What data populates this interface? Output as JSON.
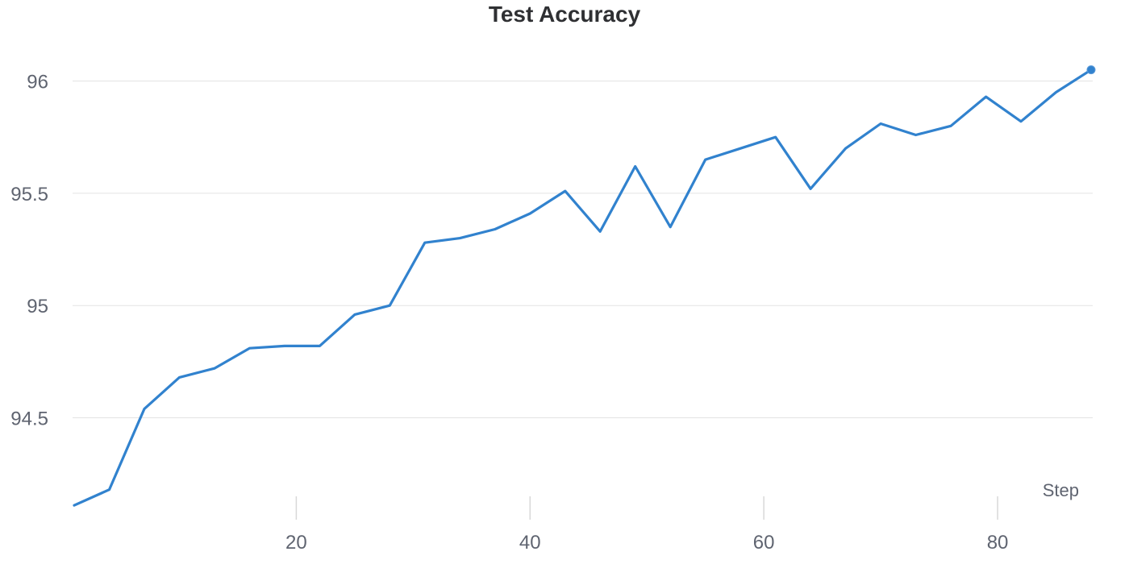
{
  "chart_data": {
    "type": "line",
    "title": "Test Accuracy",
    "xlabel": "Step",
    "ylabel": "",
    "xlim": [
      1,
      88
    ],
    "ylim": [
      94.1,
      96.16
    ],
    "x_ticks": [
      20,
      40,
      60,
      80
    ],
    "y_ticks": [
      94.5,
      95,
      95.5,
      96
    ],
    "y_tick_labels": [
      "94.5",
      "95",
      "95.5",
      "96"
    ],
    "grid": true,
    "series": [
      {
        "color": "#3182ce",
        "x": [
          1,
          4,
          7,
          10,
          13,
          16,
          19,
          22,
          25,
          28,
          31,
          34,
          37,
          40,
          43,
          46,
          49,
          52,
          55,
          58,
          61,
          64,
          67,
          70,
          73,
          76,
          79,
          82,
          85,
          88
        ],
        "y": [
          94.11,
          94.18,
          94.54,
          94.68,
          94.72,
          94.81,
          94.82,
          94.82,
          94.96,
          95.0,
          95.28,
          95.3,
          95.34,
          95.41,
          95.51,
          95.33,
          95.62,
          95.35,
          95.65,
          95.7,
          95.75,
          95.52,
          95.7,
          95.81,
          95.76,
          95.8,
          95.93,
          95.82,
          95.95,
          96.05
        ]
      }
    ],
    "end_marker": true
  }
}
